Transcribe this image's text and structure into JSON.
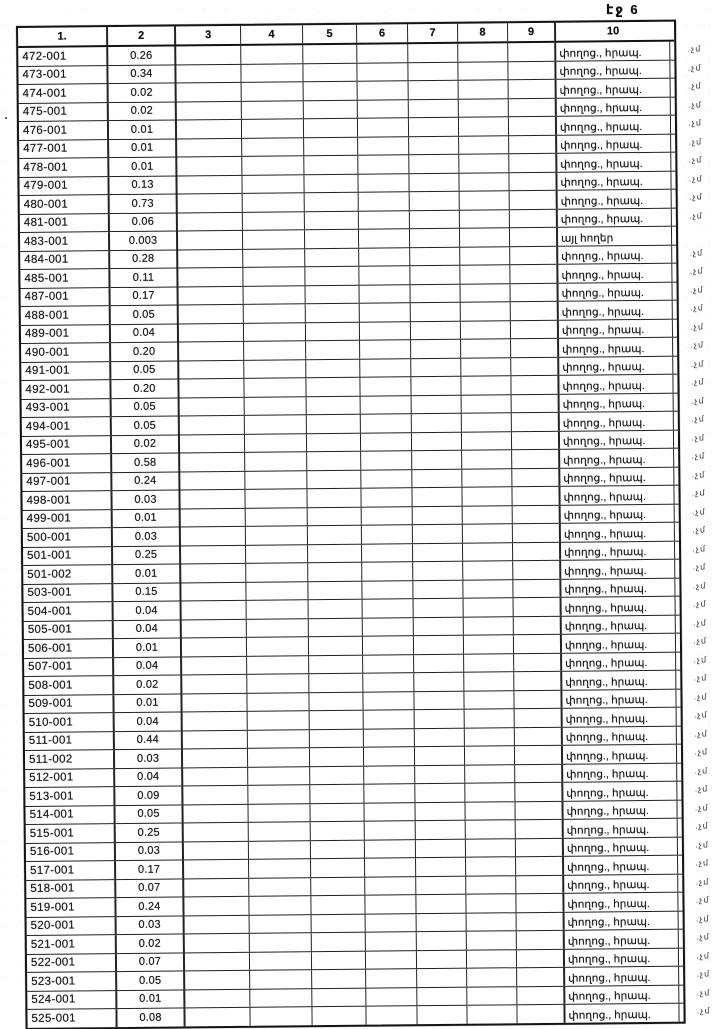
{
  "page": {
    "label": "էջ 6"
  },
  "table": {
    "headers": [
      "1.",
      "2",
      "3",
      "4",
      "5",
      "6",
      "7",
      "8",
      "9",
      "10"
    ],
    "rows": [
      [
        "472-001",
        "0.26",
        "փողոց., հրապ.",
        ".չմ"
      ],
      [
        "473-001",
        "0.34",
        "փողոց., հրապ.",
        ".չմ"
      ],
      [
        "474-001",
        "0.02",
        "փողոց., հրապ.",
        ".չմ"
      ],
      [
        "475-001",
        "0.02",
        "փողոց., հրապ.",
        ".չմ"
      ],
      [
        "476-001",
        "0.01",
        "փողոց., հրապ.",
        ".չմ"
      ],
      [
        "477-001",
        "0.01",
        "փողոց., հրապ.",
        ".չմ"
      ],
      [
        "478-001",
        "0.01",
        "փողոց., հրապ.",
        ".չմ"
      ],
      [
        "479-001",
        "0.13",
        "փողոց., հրապ.",
        ".չմ"
      ],
      [
        "480-001",
        "0.73",
        "փողոց., հրապ.",
        ".չմ"
      ],
      [
        "481-001",
        "0.06",
        "փողոց., հրապ.",
        ".չմ"
      ],
      [
        "483-001",
        "0.003",
        "այլ հողեր",
        ""
      ],
      [
        "484-001",
        "0.28",
        "փողոց., հրապ.",
        ".չմ"
      ],
      [
        "485-001",
        "0.11",
        "փողոց., հրապ.",
        ".չմ"
      ],
      [
        "487-001",
        "0.17",
        "փողոց., հրապ.",
        ".չմ"
      ],
      [
        "488-001",
        "0.05",
        "փողոց., հրապ.",
        ".չմ"
      ],
      [
        "489-001",
        "0.04",
        "փողոց., հրապ.",
        ".չմ"
      ],
      [
        "490-001",
        "0.20",
        "փողոց., հրապ.",
        ".չմ"
      ],
      [
        "491-001",
        "0.05",
        "փողոց., հրապ.",
        ".չմ"
      ],
      [
        "492-001",
        "0.20",
        "փողոց., հրապ.",
        ".չմ"
      ],
      [
        "493-001",
        "0.05",
        "փողոց., հրապ.",
        ".չմ"
      ],
      [
        "494-001",
        "0.05",
        "փողոց., հրապ.",
        ".չմ"
      ],
      [
        "495-001",
        "0.02",
        "փողոց., հրապ.",
        ".չմ"
      ],
      [
        "496-001",
        "0.58",
        "փողոց., հրապ.",
        ".չմ"
      ],
      [
        "497-001",
        "0.24",
        "փողոց., հրապ.",
        ".չմ"
      ],
      [
        "498-001",
        "0.03",
        "փողոց., հրապ.",
        ".չմ"
      ],
      [
        "499-001",
        "0.01",
        "փողոց., հրապ.",
        ".չմ"
      ],
      [
        "500-001",
        "0.03",
        "փողոց., հրապ.",
        ".չմ"
      ],
      [
        "501-001",
        "0.25",
        "փողոց., հրապ.",
        ".չմ"
      ],
      [
        "501-002",
        "0.01",
        "փողոց., հրապ.",
        ".չմ"
      ],
      [
        "503-001",
        "0.15",
        "փողոց., հրապ.",
        ".չմ"
      ],
      [
        "504-001",
        "0.04",
        "փողոց., հրապ.",
        ".չմ"
      ],
      [
        "505-001",
        "0.04",
        "փողոց., հրապ.",
        ".չմ"
      ],
      [
        "506-001",
        "0.01",
        "փողոց., հրապ.",
        ".չմ"
      ],
      [
        "507-001",
        "0.04",
        "փողոց., հրապ.",
        ".չմ"
      ],
      [
        "508-001",
        "0.02",
        "փողոց., հրապ.",
        ".չմ"
      ],
      [
        "509-001",
        "0.01",
        "փողոց., հրապ.",
        ".չմ"
      ],
      [
        "510-001",
        "0.04",
        "փողոց., հրապ.",
        ".չմ"
      ],
      [
        "511-001",
        "0.44",
        "փողոց., հրապ.",
        ".չմ"
      ],
      [
        "511-002",
        "0.03",
        "փողոց., հրապ.",
        ".չմ"
      ],
      [
        "512-001",
        "0.04",
        "փողոց., հրապ.",
        ".չմ"
      ],
      [
        "513-001",
        "0.09",
        "փողոց., հրապ.",
        ".չմ"
      ],
      [
        "514-001",
        "0.05",
        "փողոց., հրապ.",
        ".չմ"
      ],
      [
        "515-001",
        "0.25",
        "փողոց., հրապ.",
        ".չմ"
      ],
      [
        "516-001",
        "0.03",
        "փողոց., հրապ.",
        ".չմ"
      ],
      [
        "517-001",
        "0.17",
        "փողոց., հրապ.",
        ".չմ"
      ],
      [
        "518-001",
        "0.07",
        "փողոց., հրապ.",
        ".չմ"
      ],
      [
        "519-001",
        "0.24",
        "փողոց., հրապ.",
        ".չմ"
      ],
      [
        "520-001",
        "0.03",
        "փողոց., հրապ.",
        ".չմ"
      ],
      [
        "521-001",
        "0.02",
        "փողոց., հրապ.",
        ".չմ"
      ],
      [
        "522-001",
        "0.07",
        "փողոց., հրապ.",
        ".չմ"
      ],
      [
        "523-001",
        "0.05",
        "փողոց., հրապ.",
        ".չմ"
      ],
      [
        "524-001",
        "0.01",
        "փողոց., հրապ.",
        ".չմ"
      ],
      [
        "525-001",
        "0.08",
        "փողոց., հրապ.",
        ".չմ"
      ]
    ]
  }
}
